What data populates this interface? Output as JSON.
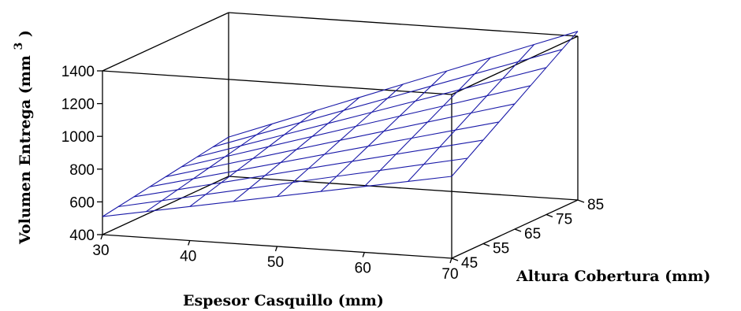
{
  "chart_data": {
    "type": "surface3d",
    "title": "",
    "xlabel": "Espesor Casquillo (mm)",
    "ylabel": "Altura Cobertura (mm)",
    "zlabel": "Volumen Entrega (mm",
    "zlabel_superscript": "3",
    "zlabel_close": ")",
    "xlim": [
      30,
      70
    ],
    "ylim": [
      45,
      85
    ],
    "zlim": [
      400,
      1400
    ],
    "xticks": [
      "30",
      "40",
      "50",
      "60",
      "70"
    ],
    "yticks": [
      "45",
      "55",
      "65",
      "75",
      "85"
    ],
    "zticks": [
      "400",
      "600",
      "800",
      "1000",
      "1200",
      "1400"
    ],
    "x": [
      30,
      35,
      40,
      45,
      50,
      55,
      60,
      65,
      70
    ],
    "y": [
      45,
      50,
      55,
      60,
      65,
      70,
      75,
      80,
      85
    ],
    "z_corners": {
      "x30_y45": 510,
      "x30_y85": 640,
      "x70_y45": 900,
      "x70_y85": 1430
    },
    "surface_color": "#1a1aa8"
  }
}
